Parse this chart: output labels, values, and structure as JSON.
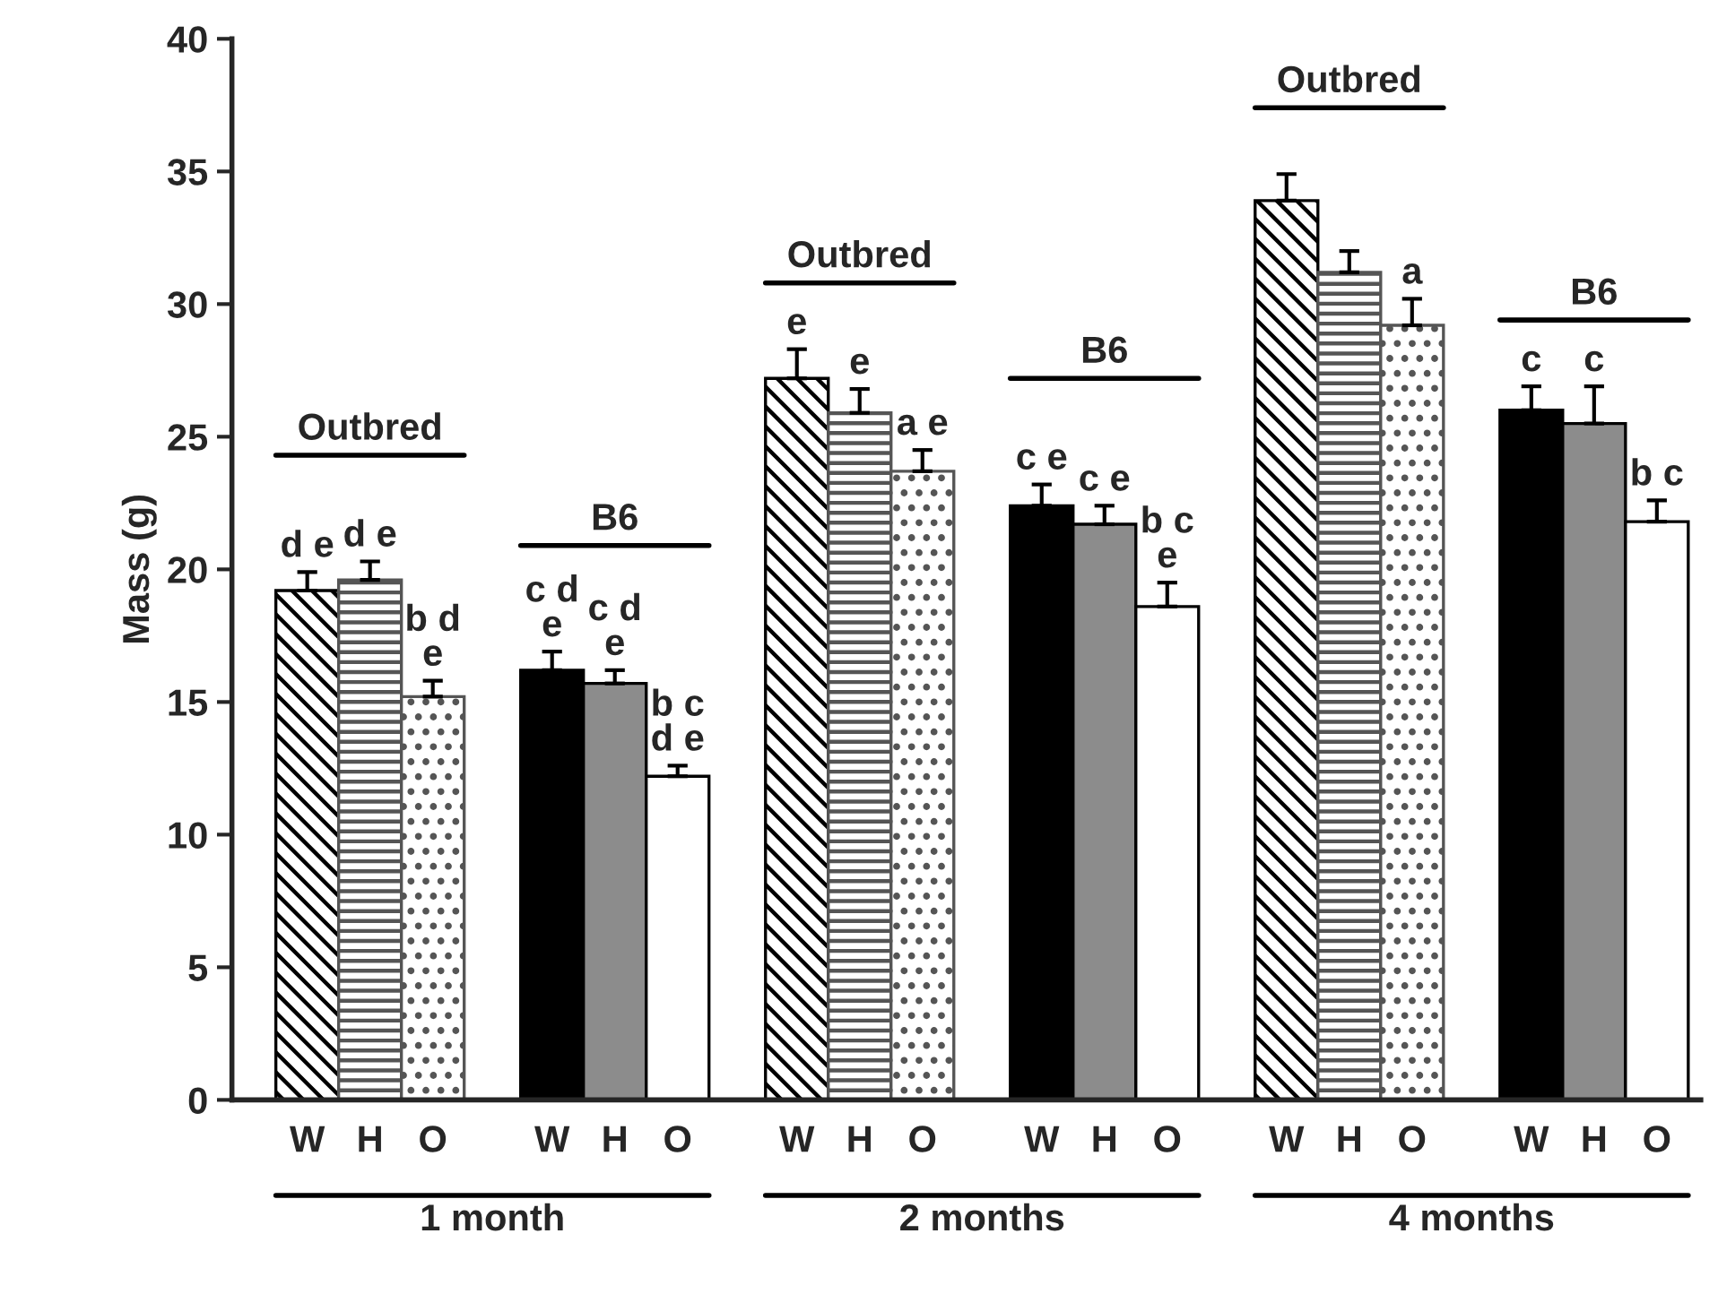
{
  "chart_data": {
    "type": "bar",
    "ylabel": "Mass (g)",
    "categories": [
      "W",
      "H",
      "O",
      "W",
      "H",
      "O",
      "W",
      "H",
      "O",
      "W",
      "H",
      "O",
      "W",
      "H",
      "O",
      "W",
      "H",
      "O"
    ],
    "values": [
      19.2,
      19.6,
      15.2,
      16.2,
      15.7,
      12.2,
      27.2,
      25.9,
      23.7,
      22.4,
      21.7,
      18.6,
      33.9,
      31.2,
      29.2,
      26.0,
      25.5,
      21.8
    ],
    "errors": [
      [
        19.2,
        19.9
      ],
      [
        19.6,
        20.3
      ],
      [
        15.2,
        15.8
      ],
      [
        16.2,
        16.9
      ],
      [
        15.7,
        16.2
      ],
      [
        12.2,
        12.6
      ],
      [
        27.2,
        28.3
      ],
      [
        25.9,
        26.8
      ],
      [
        23.7,
        24.5
      ],
      [
        22.4,
        23.2
      ],
      [
        21.7,
        22.4
      ],
      [
        18.6,
        19.5
      ],
      [
        33.9,
        34.9
      ],
      [
        31.2,
        32.0
      ],
      [
        29.2,
        30.2
      ],
      [
        26.0,
        26.9
      ],
      [
        25.5,
        26.9
      ],
      [
        21.8,
        22.6
      ]
    ],
    "colors": [
      "#000000",
      "#555555",
      "#555555",
      "#000000",
      "#8c8c8c",
      "#ffffff",
      "#000000",
      "#555555",
      "#555555",
      "#000000",
      "#8c8c8c",
      "#ffffff",
      "#000000",
      "#555555",
      "#555555",
      "#000000",
      "#8c8c8c",
      "#ffffff"
    ],
    "value_labels": [
      "d e",
      "d e",
      "b d\ne",
      "c d\ne",
      "c d\ne",
      "b c\nd e",
      "e",
      "e",
      "a e",
      "c e",
      "c e",
      "b c\ne",
      null,
      null,
      "a",
      "c",
      "c",
      "b c"
    ],
    "annotations": [
      "Outbred",
      "B6",
      "Outbred",
      "B6",
      "Outbred",
      "B6",
      "1 month",
      "2 months",
      "4 months"
    ],
    "ylim": [
      0,
      40
    ],
    "yticks": [
      0,
      5,
      10,
      15,
      20,
      25,
      30,
      35,
      40
    ],
    "grid": false,
    "legend": false
  }
}
